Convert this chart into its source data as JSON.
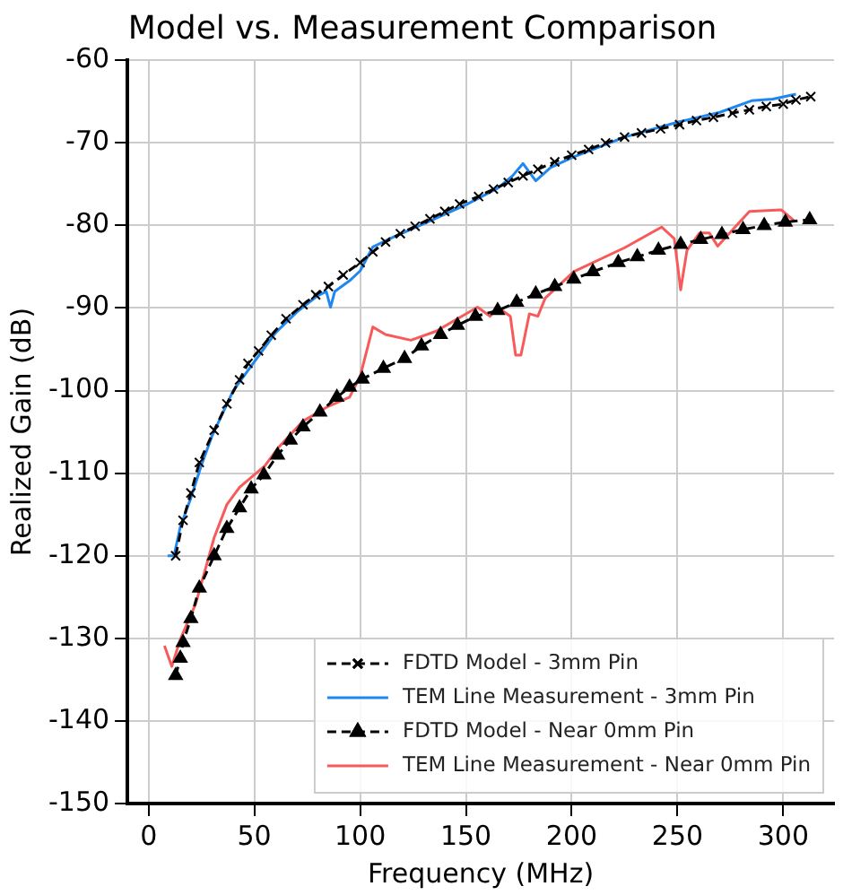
{
  "chart_data": {
    "type": "line",
    "title": "Model vs. Measurement Comparison",
    "xlabel": "Frequency (MHz)",
    "ylabel": "Realized Gain (dB)",
    "xlim": [
      -10,
      324
    ],
    "xticks": [
      0,
      50,
      100,
      150,
      200,
      250,
      300
    ],
    "ylim": [
      -150,
      -60
    ],
    "yticks": [
      -150,
      -140,
      -130,
      -120,
      -110,
      -100,
      -90,
      -80,
      -70,
      -60
    ],
    "grid": true,
    "legend": "bottom right",
    "series": [
      {
        "name": "FDTD Model - 3mm Pin",
        "color": "#000000",
        "marker": "cross",
        "line_style": "dashed",
        "x": [
          12.8,
          16.3,
          20,
          24,
          31,
          37,
          43,
          47,
          52,
          58,
          65,
          73,
          79,
          85,
          92,
          100,
          106,
          112,
          119,
          126,
          133,
          140,
          147,
          156,
          163,
          170,
          177,
          184,
          192,
          200,
          208,
          216,
          225,
          233,
          242,
          251,
          259,
          267,
          276,
          284,
          292,
          300,
          306,
          313
        ],
        "values": [
          -120,
          -115.7,
          -112.4,
          -108.7,
          -104.8,
          -101.6,
          -98.7,
          -96.7,
          -95.2,
          -93.3,
          -91.3,
          -89.6,
          -88.4,
          -87.4,
          -86,
          -84.5,
          -83.2,
          -82,
          -81,
          -80.1,
          -79.2,
          -78.3,
          -77.4,
          -76.5,
          -75.6,
          -74.8,
          -74,
          -73.2,
          -72.3,
          -71.5,
          -70.8,
          -70,
          -69.3,
          -68.8,
          -68.3,
          -67.8,
          -67.3,
          -66.9,
          -66.4,
          -66,
          -65.6,
          -65.3,
          -64.8,
          -64.4
        ]
      },
      {
        "name": "TEM Line Measurement - 3mm Pin",
        "color": "#1e88f0",
        "marker": "none",
        "line_style": "solid",
        "x": [
          9,
          12,
          15,
          20,
          25,
          30,
          40,
          50,
          60,
          70,
          80,
          84,
          86,
          88,
          95,
          100,
          106,
          115,
          130,
          150,
          165,
          172,
          177,
          183,
          190,
          200,
          225,
          250,
          270,
          285,
          295,
          306
        ],
        "values": [
          -120,
          -120,
          -116.5,
          -113,
          -109,
          -105.5,
          -100,
          -96.5,
          -93,
          -90.5,
          -88.5,
          -88,
          -89.9,
          -88,
          -86.7,
          -85.5,
          -82.6,
          -81.5,
          -79.8,
          -77.5,
          -75.5,
          -74,
          -72.5,
          -74.6,
          -73,
          -71.8,
          -69.3,
          -67.5,
          -66.3,
          -64.9,
          -64.7,
          -64.1
        ]
      },
      {
        "name": "FDTD Model - Near 0mm Pin",
        "color": "#000000",
        "marker": "triangle",
        "line_style": "dashed",
        "x": [
          12.8,
          15,
          16.3,
          20,
          24,
          31,
          37,
          43,
          48.5,
          54.5,
          61,
          67,
          73,
          81,
          89,
          95,
          101,
          111,
          121,
          129,
          138,
          146,
          154.5,
          165,
          174,
          183,
          192,
          201,
          210,
          222,
          231,
          241,
          251.5,
          261,
          271,
          281,
          291,
          301,
          312.5
        ],
        "values": [
          -134.5,
          -132.4,
          -130.5,
          -127.6,
          -123.9,
          -120,
          -116.7,
          -114.2,
          -111.9,
          -110.2,
          -107.8,
          -106,
          -104.4,
          -102.6,
          -100.8,
          -99.6,
          -98.6,
          -97.3,
          -96.1,
          -94.6,
          -93.2,
          -92.1,
          -91,
          -90.3,
          -89.3,
          -88.3,
          -87.4,
          -86.5,
          -85.6,
          -84.5,
          -83.8,
          -83,
          -82.3,
          -81.7,
          -81.1,
          -80.5,
          -80,
          -79.6,
          -79.3
        ]
      },
      {
        "name": "TEM Line Measurement - Near 0mm Pin",
        "color": "#f85a5a",
        "marker": "none",
        "line_style": "solid",
        "x": [
          7.5,
          11,
          15,
          22.3,
          31,
          37,
          43,
          49,
          55,
          61,
          73,
          85,
          95,
          100,
          106,
          112,
          124,
          136,
          148,
          155.5,
          161.5,
          165,
          171,
          173.5,
          176,
          180,
          184,
          187.5,
          201,
          225,
          242.5,
          248.5,
          251.5,
          254.5,
          260.5,
          265,
          269,
          284,
          299,
          305
        ],
        "values": [
          -130.9,
          -133.4,
          -130.1,
          -125.8,
          -117.8,
          -113.8,
          -111.7,
          -110.4,
          -109.1,
          -107,
          -103.7,
          -101.9,
          -100.8,
          -98.3,
          -92.3,
          -93.2,
          -93.9,
          -92.8,
          -91,
          -89.9,
          -91,
          -89.9,
          -91,
          -95.7,
          -95.7,
          -90.7,
          -91,
          -88.8,
          -85.6,
          -82.7,
          -80.2,
          -81.6,
          -87.8,
          -83,
          -80.9,
          -80.9,
          -82.5,
          -78.3,
          -78.1,
          -79.4
        ]
      }
    ]
  }
}
